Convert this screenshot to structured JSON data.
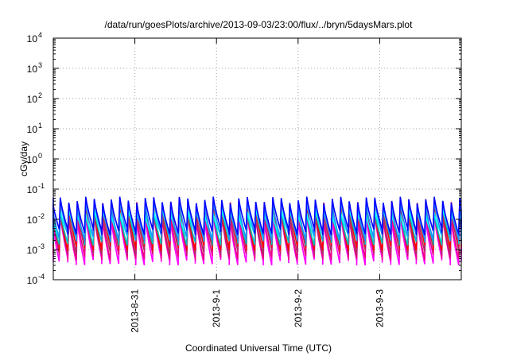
{
  "chart_data": {
    "type": "line",
    "title": "/data/run/goesPlots/archive/2013-09-03/23:00/flux/../bryn/5daysMars.plot",
    "xlabel": "Coordinated Universal Time (UTC)",
    "ylabel": "cGy/day",
    "xlim": [
      "2013-08-30T00:00",
      "2013-09-04T00:00"
    ],
    "ylim": [
      0.0001,
      10000
    ],
    "yscale": "log",
    "grid": true,
    "legend": "none",
    "x_ticks": [
      {
        "x": "2013-08-31",
        "label": "2013-8-31"
      },
      {
        "x": "2013-09-01",
        "label": "2013-9-1"
      },
      {
        "x": "2013-09-02",
        "label": "2013-9-2"
      },
      {
        "x": "2013-09-03",
        "label": "2013-9-3"
      }
    ],
    "y_ticks": [
      {
        "value": 0.0001,
        "base": "10",
        "exp": "-4"
      },
      {
        "value": 0.001,
        "base": "10",
        "exp": "-3"
      },
      {
        "value": 0.01,
        "base": "10",
        "exp": "-2"
      },
      {
        "value": 0.1,
        "base": "10",
        "exp": "-1"
      },
      {
        "value": 1,
        "base": "10",
        "exp": "0"
      },
      {
        "value": 10,
        "base": "10",
        "exp": "1"
      },
      {
        "value": 100,
        "base": "10",
        "exp": "2"
      },
      {
        "value": 1000,
        "base": "10",
        "exp": "3"
      },
      {
        "value": 10000,
        "base": "10",
        "exp": "4"
      }
    ],
    "cycle_hours": 2.5,
    "series": [
      {
        "color": "#ff00ff",
        "peak": 0.012,
        "trough": 0.0004
      },
      {
        "color": "#e8007e",
        "peak": 0.015,
        "trough": 0.0006
      },
      {
        "color": "#b03060",
        "peak": 0.02,
        "trough": 0.0009
      },
      {
        "color": "#ff0000",
        "peak": 0.03,
        "trough": 0.0012
      },
      {
        "color": "#00bfbf",
        "peak": 0.022,
        "trough": 0.0018
      },
      {
        "color": "#00ffff",
        "peak": 0.018,
        "trough": 0.003
      },
      {
        "color": "#1e90ff",
        "peak": 0.035,
        "trough": 0.0025
      },
      {
        "color": "#0000ff",
        "peak": 0.045,
        "trough": 0.004
      }
    ]
  }
}
